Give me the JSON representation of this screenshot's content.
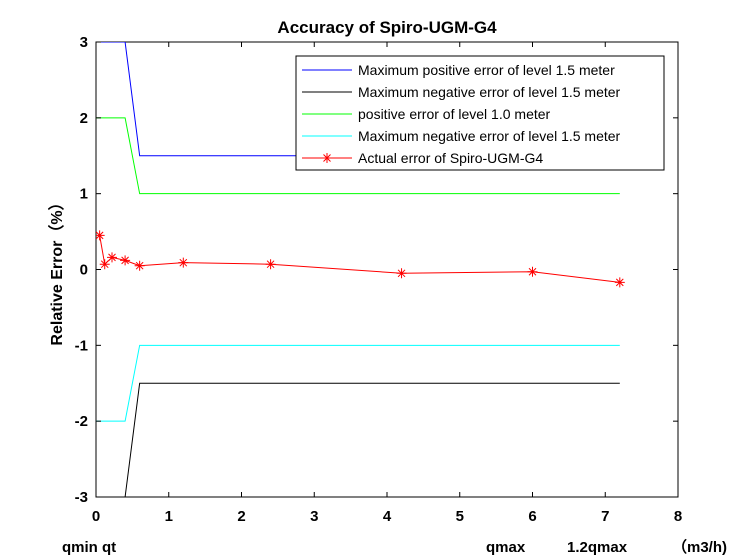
{
  "chart_data": {
    "type": "line",
    "title": "Accuracy of Spiro-UGM-G4",
    "ylabel": "Relative Error（%）",
    "xlim": [
      0,
      8
    ],
    "ylim": [
      -3,
      3
    ],
    "xticks": [
      "0",
      "1",
      "2",
      "3",
      "4",
      "5",
      "6",
      "7",
      "8"
    ],
    "yticks": [
      "-3",
      "-2",
      "-1",
      "0",
      "1",
      "2",
      "3"
    ],
    "grid": false,
    "legend_position": "top-right",
    "bottom_annotations": [
      "qmin qt",
      "qmax",
      "1.2qmax",
      "（m3/h)"
    ],
    "series": [
      {
        "name": "Maximum positive error of level 1.5 meter",
        "color": "#0000ff",
        "marker": "none",
        "x": [
          0,
          0.4,
          0.6,
          7.2
        ],
        "y": [
          3,
          3,
          1.5,
          1.5
        ]
      },
      {
        "name": "Maximum negative error of level 1.5 meter",
        "color": "#000000",
        "marker": "none",
        "x": [
          0.4,
          0.6,
          7.2
        ],
        "y": [
          -3,
          -1.5,
          -1.5
        ]
      },
      {
        "name": "positive error of level 1.0 meter",
        "color": "#00ff00",
        "marker": "none",
        "x": [
          0,
          0.4,
          0.6,
          7.2
        ],
        "y": [
          2,
          2,
          1,
          1
        ]
      },
      {
        "name": "Maximum negative error of level 1.5 meter",
        "color": "#00ffff",
        "marker": "none",
        "x": [
          0,
          0.4,
          0.6,
          7.2
        ],
        "y": [
          -2,
          -2,
          -1,
          -1
        ]
      },
      {
        "name": "Actual error of Spiro-UGM-G4",
        "color": "#ff0000",
        "marker": "asterisk",
        "x": [
          0.05,
          0.12,
          0.22,
          0.4,
          0.6,
          1.2,
          2.4,
          4.2,
          6.0,
          7.2
        ],
        "y": [
          0.45,
          0.07,
          0.16,
          0.12,
          0.05,
          0.09,
          0.07,
          -0.05,
          -0.03,
          -0.17
        ]
      }
    ]
  }
}
